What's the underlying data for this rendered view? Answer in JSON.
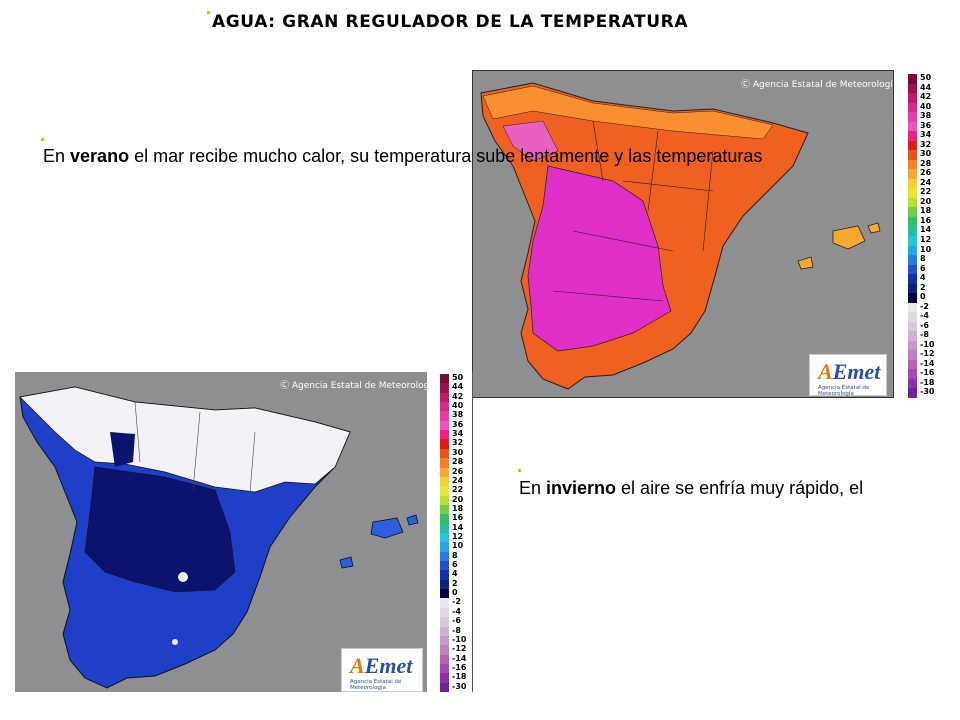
{
  "title": "AGUA: GRAN REGULADOR DE LA TEMPERATURA",
  "summer": {
    "pre": "En ",
    "bold": "verano",
    "post": " el mar recibe mucho calor, su temperatura sube lentamente y las temperaturas"
  },
  "winter": {
    "pre": "En ",
    "bold": "invierno",
    "post": " el aire se enfría muy rápido, el"
  },
  "map_copyright": "Agencia Estatal de Meteorología",
  "logo": {
    "name": "AEmet",
    "sub": "Agencia Estatal de Meteorología"
  },
  "legend": {
    "labels": [
      "50",
      "44",
      "42",
      "40",
      "38",
      "36",
      "34",
      "32",
      "30",
      "28",
      "26",
      "24",
      "22",
      "20",
      "18",
      "16",
      "14",
      "12",
      "10",
      "8",
      "6",
      "4",
      "2",
      "0",
      "-2",
      "-4",
      "-6",
      "-8",
      "-10",
      "-12",
      "-14",
      "-16",
      "-18",
      "-30"
    ],
    "colors": [
      "#7a0a3a",
      "#a0104a",
      "#c21a6a",
      "#d82a8a",
      "#ea3aa8",
      "#f050c0",
      "#f02080",
      "#e81818",
      "#f05010",
      "#f88020",
      "#f8a830",
      "#f8d030",
      "#e8e830",
      "#b8e030",
      "#70d040",
      "#30c060",
      "#20c0a0",
      "#20c8d8",
      "#20a8e8",
      "#2080e0",
      "#2050d0",
      "#1030b0",
      "#102080",
      "#000040",
      "#e8e8ee",
      "#e0d8e4",
      "#d8c8dc",
      "#d0b0d4",
      "#c898c8",
      "#c080c0",
      "#b860b8",
      "#a848b0",
      "#9030a8",
      "#7020a0"
    ]
  }
}
